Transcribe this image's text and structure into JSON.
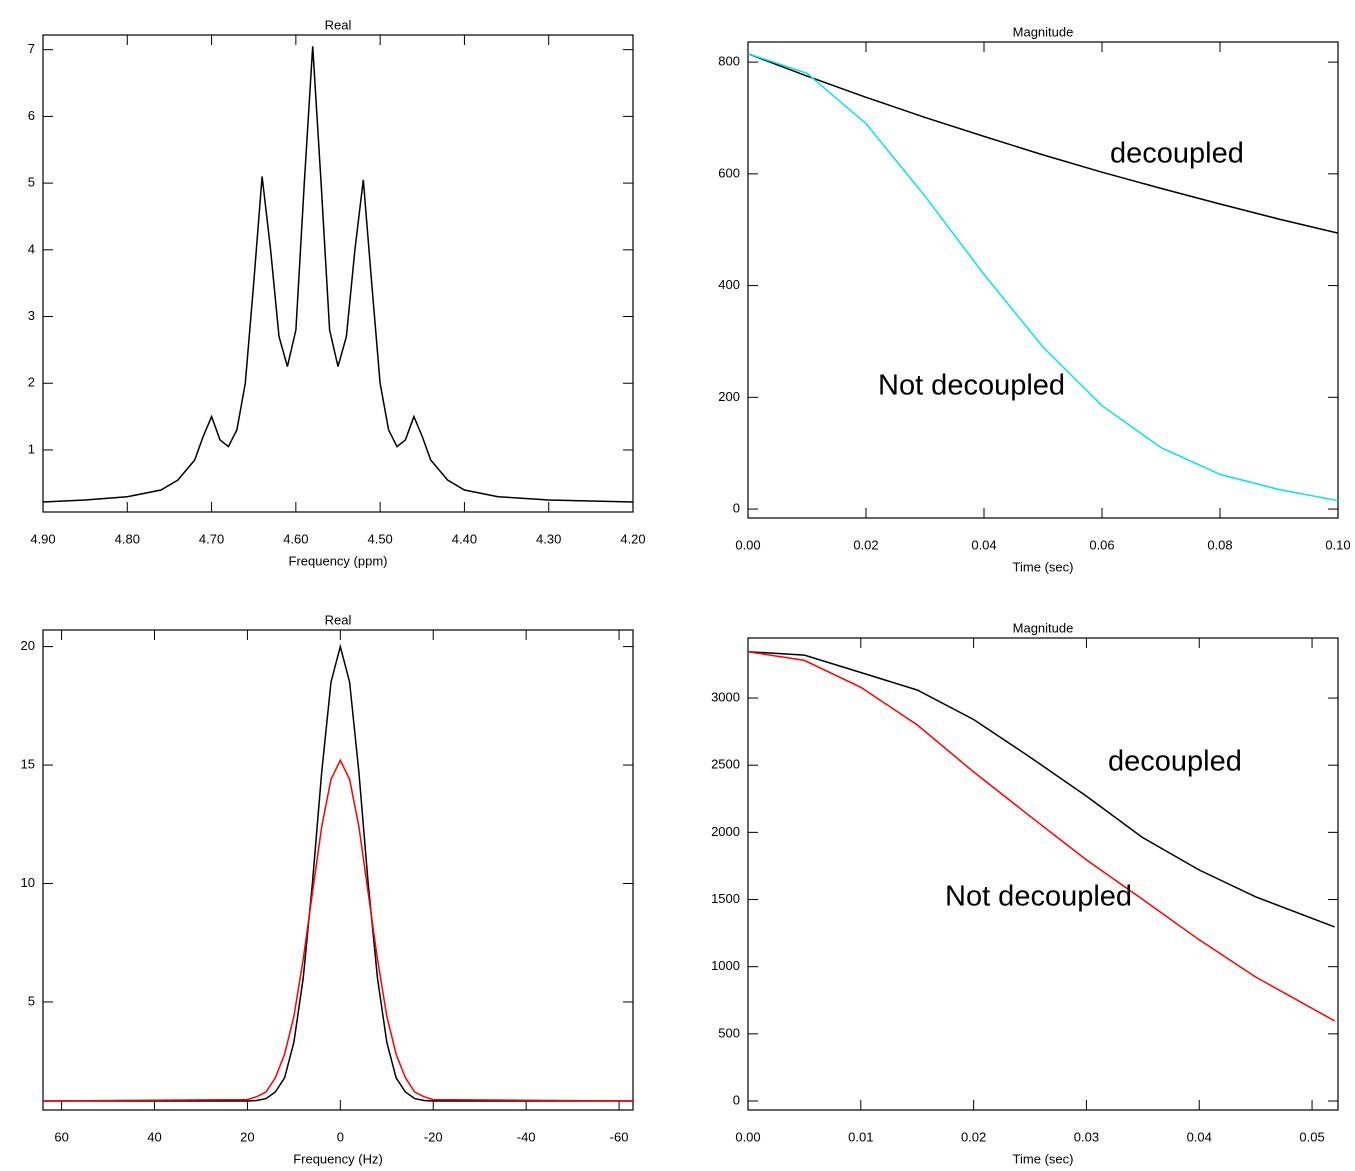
{
  "chart_data": [
    {
      "type": "line",
      "title": "Real",
      "xlabel": "Frequency (ppm)",
      "xlim": [
        4.9,
        4.2
      ],
      "ylim": [
        0.07,
        7.22
      ],
      "xticks": [
        {
          "value": 4.9,
          "label": "4.90"
        },
        {
          "value": 4.8,
          "label": "4.80"
        },
        {
          "value": 4.7,
          "label": "4.70"
        },
        {
          "value": 4.6,
          "label": "4.60"
        },
        {
          "value": 4.5,
          "label": "4.50"
        },
        {
          "value": 4.4,
          "label": "4.40"
        },
        {
          "value": 4.3,
          "label": "4.30"
        },
        {
          "value": 4.2,
          "label": "4.20"
        }
      ],
      "yticks": [
        1,
        2,
        3,
        4,
        5,
        6,
        7
      ],
      "x": [
        4.9,
        4.85,
        4.8,
        4.76,
        4.74,
        4.72,
        4.71,
        4.7,
        4.69,
        4.68,
        4.67,
        4.66,
        4.65,
        4.64,
        4.63,
        4.62,
        4.61,
        4.6,
        4.59,
        4.58,
        4.57,
        4.56,
        4.55,
        4.54,
        4.53,
        4.52,
        4.51,
        4.5,
        4.49,
        4.48,
        4.47,
        4.46,
        4.45,
        4.44,
        4.42,
        4.4,
        4.36,
        4.3,
        4.2
      ],
      "series": [
        {
          "color": "#000000",
          "values": [
            0.22,
            0.25,
            0.3,
            0.4,
            0.55,
            0.85,
            1.2,
            1.5,
            1.15,
            1.05,
            1.3,
            2.0,
            3.5,
            5.1,
            4.0,
            2.7,
            2.25,
            2.8,
            5.0,
            7.05,
            5.0,
            2.8,
            2.25,
            2.7,
            4.0,
            5.05,
            3.5,
            2.0,
            1.3,
            1.05,
            1.15,
            1.5,
            1.2,
            0.85,
            0.55,
            0.4,
            0.3,
            0.25,
            0.22
          ]
        }
      ]
    },
    {
      "type": "line",
      "title": "Magnitude",
      "xlabel": "Time (sec)",
      "xlim": [
        0,
        0.1
      ],
      "ylim": [
        -16,
        836
      ],
      "xticks": [
        {
          "value": 0,
          "label": "0.00"
        },
        0.02,
        0.04,
        0.06,
        0.08,
        {
          "value": 0.1,
          "label": "0.10"
        }
      ],
      "yticks": [
        0,
        200,
        400,
        600,
        800
      ],
      "x": [
        0,
        0.01,
        0.02,
        0.03,
        0.04,
        0.05,
        0.06,
        0.07,
        0.08,
        0.09,
        0.1
      ],
      "series": [
        {
          "name": "decoupled",
          "color": "#000000",
          "values": [
            815,
            775,
            737,
            701,
            667,
            634,
            603,
            574,
            546,
            519,
            494
          ]
        },
        {
          "name": "Not decoupled",
          "color": "#00e5ee",
          "values": [
            815,
            780,
            690,
            560,
            420,
            290,
            185,
            110,
            62,
            35,
            15
          ]
        }
      ]
    },
    {
      "type": "line",
      "title": "Real",
      "xlabel": "Frequency (Hz)",
      "xlim": [
        64,
        -63
      ],
      "ylim": [
        0.44,
        20.7
      ],
      "xticks": [
        60,
        40,
        20,
        0,
        -20,
        -40,
        -60
      ],
      "yticks": [
        5,
        10,
        15,
        20
      ],
      "x": [
        64,
        20,
        18,
        16,
        14,
        12,
        10,
        8,
        6,
        4,
        2,
        0,
        -2,
        -4,
        -6,
        -8,
        -10,
        -12,
        -14,
        -16,
        -18,
        -20,
        -63
      ],
      "series": [
        {
          "color": "#000000",
          "values": [
            0.82,
            0.82,
            0.84,
            0.92,
            1.2,
            1.8,
            3.3,
            6.0,
            10.0,
            14.7,
            18.5,
            20.0,
            18.5,
            14.7,
            10.0,
            6.0,
            3.3,
            1.8,
            1.2,
            0.92,
            0.84,
            0.82,
            0.82
          ]
        },
        {
          "color": "#ff0000",
          "values": [
            0.82,
            0.88,
            1.0,
            1.2,
            1.8,
            2.8,
            4.4,
            6.8,
            9.6,
            12.4,
            14.4,
            15.2,
            14.4,
            12.4,
            9.6,
            6.8,
            4.4,
            2.8,
            1.8,
            1.2,
            1.0,
            0.88,
            0.82
          ]
        }
      ]
    },
    {
      "type": "line",
      "title": "Magnitude",
      "xlabel": "Time (sec)",
      "xlim": [
        0,
        0.0523
      ],
      "ylim": [
        -67,
        3447
      ],
      "xticks": [
        {
          "value": 0,
          "label": "0.00"
        },
        0.01,
        0.02,
        0.03,
        0.04,
        0.05
      ],
      "yticks": [
        0,
        500,
        1000,
        1500,
        2000,
        2500,
        3000
      ],
      "x": [
        0,
        0.005,
        0.01,
        0.015,
        0.02,
        0.025,
        0.03,
        0.035,
        0.04,
        0.045,
        0.052
      ],
      "series": [
        {
          "name": "decoupled",
          "color": "#000000",
          "values": [
            3345,
            3320,
            3190,
            3060,
            2840,
            2560,
            2270,
            1960,
            1720,
            1520,
            1296
          ]
        },
        {
          "name": "Not decoupled",
          "color": "#ff0000",
          "values": [
            3345,
            3280,
            3080,
            2800,
            2450,
            2120,
            1795,
            1500,
            1200,
            923,
            596
          ]
        }
      ]
    }
  ]
}
